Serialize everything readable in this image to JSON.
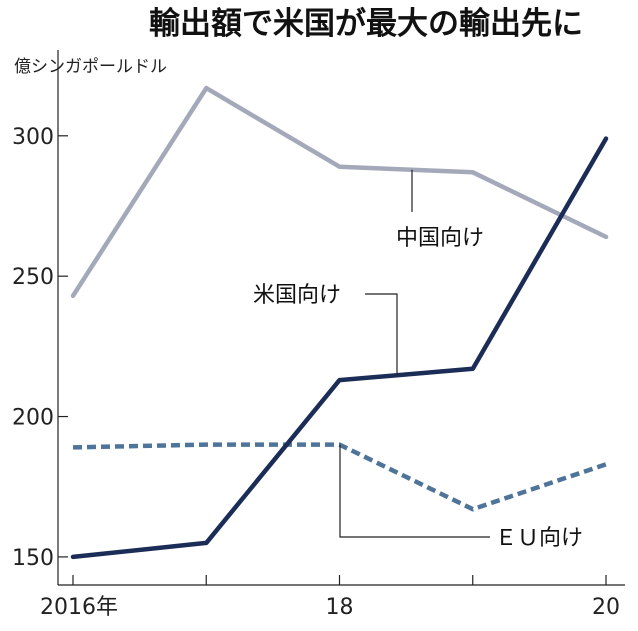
{
  "chart_data": {
    "type": "line",
    "title": "輸出額で米国が最大の輸出先に",
    "ylabel": "億シンガポールドル",
    "xlabel": "",
    "x": [
      2016,
      2017,
      2018,
      2019,
      2020
    ],
    "x_tick_labels": [
      {
        "x": 2016,
        "label": "2016年"
      },
      {
        "x": 2018,
        "label": "18"
      },
      {
        "x": 2020,
        "label": "20"
      }
    ],
    "y_ticks": [
      150,
      200,
      250,
      300
    ],
    "ylim": [
      140,
      327
    ],
    "grid": false,
    "series": [
      {
        "name": "中国向け",
        "values": [
          243,
          317,
          289,
          287,
          264
        ],
        "color": "#a3a9b8",
        "style": "solid"
      },
      {
        "name": "米国向け",
        "values": [
          150,
          155,
          213,
          217,
          299
        ],
        "color": "#1b2d57",
        "style": "solid"
      },
      {
        "name": "ＥＵ向け",
        "values": [
          189,
          190,
          190,
          167,
          183
        ],
        "color": "#4f7499",
        "style": "dashed"
      }
    ]
  }
}
